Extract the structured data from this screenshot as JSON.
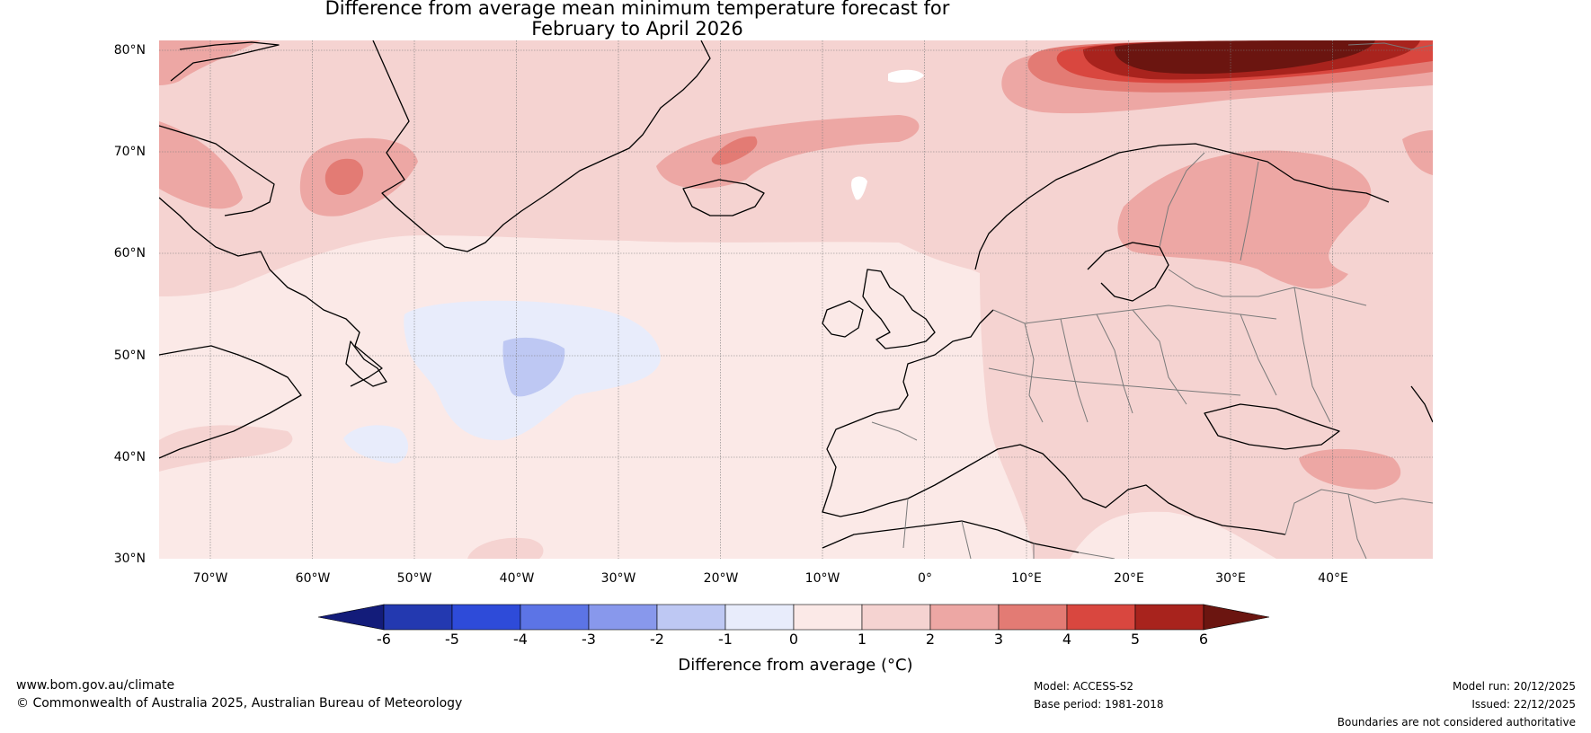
{
  "title_line1": "Difference from average mean minimum temperature forecast for",
  "title_line2": "February to April 2026",
  "map": {
    "lat_labels": [
      "80°N",
      "70°N",
      "60°N",
      "50°N",
      "40°N",
      "30°N"
    ],
    "lon_labels": [
      "70°W",
      "60°W",
      "50°W",
      "40°W",
      "30°W",
      "20°W",
      "10°W",
      "0°",
      "10°E",
      "20°E",
      "30°E",
      "40°E"
    ]
  },
  "colorbar": {
    "title": "Difference from average (°C)",
    "ticks": [
      "-6",
      "-5",
      "-4",
      "-3",
      "-2",
      "-1",
      "0",
      "1",
      "2",
      "3",
      "4",
      "5",
      "6"
    ],
    "colors": [
      "#131c7a",
      "#2339b0",
      "#2e4bd9",
      "#5c74e6",
      "#8898ec",
      "#bec8f3",
      "#e8ecfb",
      "#fbe9e7",
      "#f5d3d1",
      "#eda7a4",
      "#e37b74",
      "#d9473f",
      "#a8231d",
      "#6b1510"
    ]
  },
  "footer": {
    "website": "www.bom.gov.au/climate",
    "copyright": "© Commonwealth of Australia 2025, Australian Bureau of Meteorology",
    "model": "Model: ACCESS-S2",
    "base_period": "Base period: 1981-2018",
    "model_run": "Model run: 20/12/2025",
    "issued": "Issued: 22/12/2025",
    "disclaimer": "Boundaries are not considered authoritative"
  }
}
